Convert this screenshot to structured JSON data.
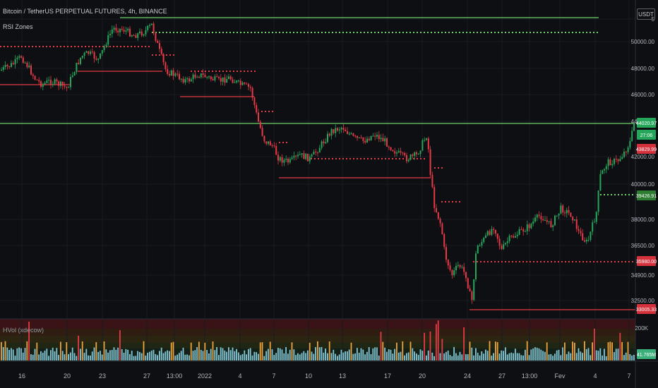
{
  "header": {
    "title": "Bitcoin / TetherUS PERPETUAL FUTURES, 4h, BINANCE",
    "indicator": "RSI Zones",
    "volume_label": "HVol (xdecow)",
    "currency": "USDT"
  },
  "price_axis": {
    "ticks": [
      "5",
      "50000.00",
      "48000.00",
      "46000.00",
      "44000.00",
      "42000.00",
      "40000.00",
      "38000.00",
      "36500.00",
      "34900.00",
      "32500.00"
    ],
    "volume_tick": "200K"
  },
  "price_tags": [
    {
      "text": "44020.97",
      "color": "#26a65b"
    },
    {
      "text": "27:06",
      "color": "#26a65b"
    },
    {
      "text": "43829.99",
      "color": "#d6323e"
    },
    {
      "text": "39426.91",
      "color": "#2e7d32"
    },
    {
      "text": "35980.00",
      "color": "#d6323e"
    },
    {
      "text": "33005.33",
      "color": "#d6323e"
    },
    {
      "text": "41.765M",
      "color": "#3bb07b"
    }
  ],
  "time_axis": [
    "16",
    "20",
    "23",
    "27",
    "13:00",
    "2022",
    "4",
    "7",
    "10",
    "13",
    "17",
    "20",
    "24",
    "27",
    "13:00",
    "Fev",
    "4",
    "7"
  ],
  "colors": {
    "up": "#26a65b",
    "down": "#e53946",
    "level_green": "#6fd36a",
    "level_red": "#e53946",
    "vol_blue": "#84c7d6",
    "vol_orange": "#f0a33c",
    "vol_red": "#e53946"
  }
}
